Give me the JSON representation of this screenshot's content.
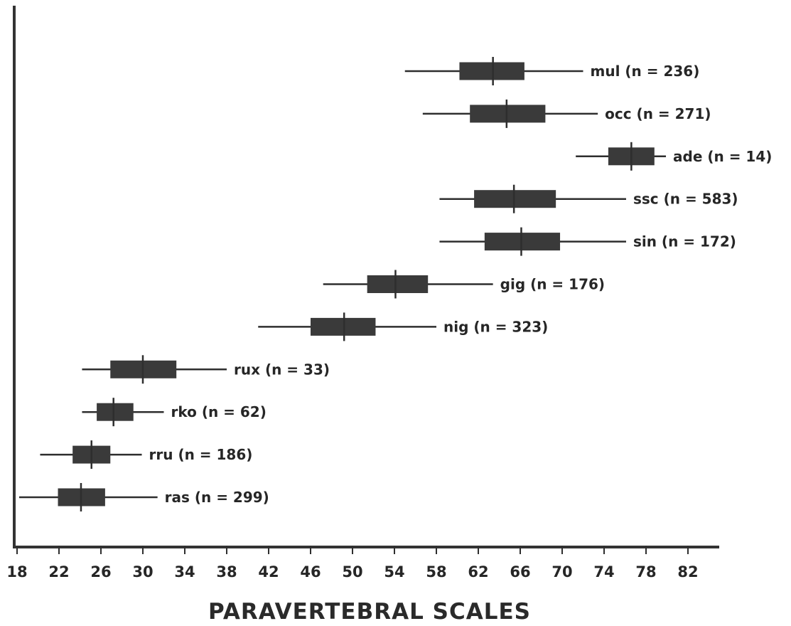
{
  "chart_data": {
    "type": "box",
    "xlabel": "PARAVERTEBRAL SCALES",
    "ylabel": "",
    "xlim": [
      18,
      84
    ],
    "x_ticks": [
      18,
      22,
      26,
      30,
      34,
      38,
      42,
      46,
      50,
      54,
      58,
      62,
      66,
      70,
      74,
      78,
      82
    ],
    "grid": false,
    "colors": {
      "box": "#3a3a3a",
      "line": "#2e2e2e",
      "text": "#262626",
      "background": "#ffffff"
    },
    "series": [
      {
        "label": "mul (n = 236)",
        "min": 55.0,
        "q1": 60.2,
        "median": 63.4,
        "q3": 66.4,
        "max": 72.0
      },
      {
        "label": "occ (n = 271)",
        "min": 56.7,
        "q1": 61.2,
        "median": 64.7,
        "q3": 68.4,
        "max": 73.4
      },
      {
        "label": "ade (n = 14)",
        "min": 71.3,
        "q1": 74.4,
        "median": 76.6,
        "q3": 78.8,
        "max": 79.9
      },
      {
        "label": "ssc (n = 583)",
        "min": 58.3,
        "q1": 61.6,
        "median": 65.4,
        "q3": 69.4,
        "max": 76.1
      },
      {
        "label": "sin (n = 172)",
        "min": 58.3,
        "q1": 62.6,
        "median": 66.1,
        "q3": 69.8,
        "max": 76.1
      },
      {
        "label": "gig (n = 176)",
        "min": 47.2,
        "q1": 51.4,
        "median": 54.1,
        "q3": 57.2,
        "max": 63.4
      },
      {
        "label": "nig (n = 323)",
        "min": 41.0,
        "q1": 46.0,
        "median": 49.2,
        "q3": 52.2,
        "max": 58.0
      },
      {
        "label": "rux (n = 33)",
        "min": 24.2,
        "q1": 26.9,
        "median": 30.0,
        "q3": 33.2,
        "max": 38.0
      },
      {
        "label": "rko (n = 62)",
        "min": 24.2,
        "q1": 25.6,
        "median": 27.2,
        "q3": 29.1,
        "max": 32.0
      },
      {
        "label": "rru (n = 186)",
        "min": 20.2,
        "q1": 23.3,
        "median": 25.1,
        "q3": 26.9,
        "max": 29.9
      },
      {
        "label": "ras (n = 299)",
        "min": 18.2,
        "q1": 21.9,
        "median": 24.1,
        "q3": 26.4,
        "max": 31.4
      }
    ]
  }
}
